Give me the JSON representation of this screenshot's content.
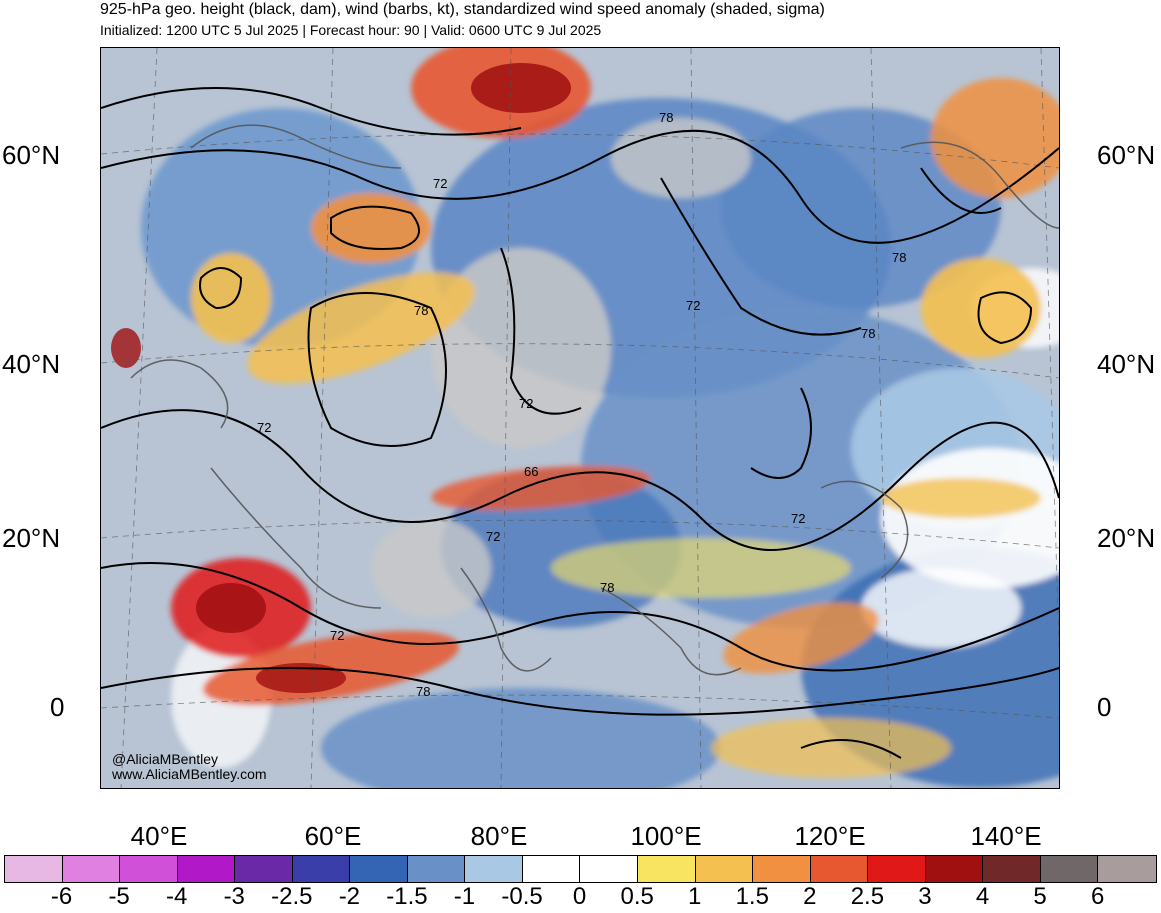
{
  "title": "925-hPa geo. height (black, dam), wind (barbs, kt), standardized wind speed anomaly (shaded, sigma)",
  "subtitle": "Initialized: 1200 UTC 5 Jul 2025 | Forecast hour: 90 | Valid: 0600 UTC 9 Jul 2025",
  "latitude_labels": [
    "60°N",
    "40°N",
    "20°N",
    "0"
  ],
  "longitude_labels": [
    "40°E",
    "60°E",
    "80°E",
    "100°E",
    "120°E",
    "140°E"
  ],
  "contour_labels": [
    "72",
    "78",
    "78",
    "72",
    "78",
    "72",
    "72",
    "66",
    "72",
    "72",
    "78",
    "72",
    "78",
    "78"
  ],
  "watermark": [
    "@AliciaMBentley",
    "www.AliciaMBentley.com"
  ],
  "colorbar": {
    "labels": [
      "-6",
      "-5",
      "-4",
      "-3",
      "-2.5",
      "-2",
      "-1.5",
      "-1",
      "-0.5",
      "0",
      "0.5",
      "1",
      "1.5",
      "2",
      "2.5",
      "3",
      "4",
      "5",
      "6"
    ],
    "colors": [
      "#e8b8e4",
      "#e080e0",
      "#d050d8",
      "#b018c8",
      "#6a2aa8",
      "#3a3ea8",
      "#3464b4",
      "#6a90c8",
      "#a8c8e4",
      "#ffffff",
      "#ffffff",
      "#f8e460",
      "#f4c050",
      "#f09040",
      "#e85830",
      "#e01818",
      "#a01010",
      "#702828",
      "#706868",
      "#a89c9c"
    ]
  }
}
